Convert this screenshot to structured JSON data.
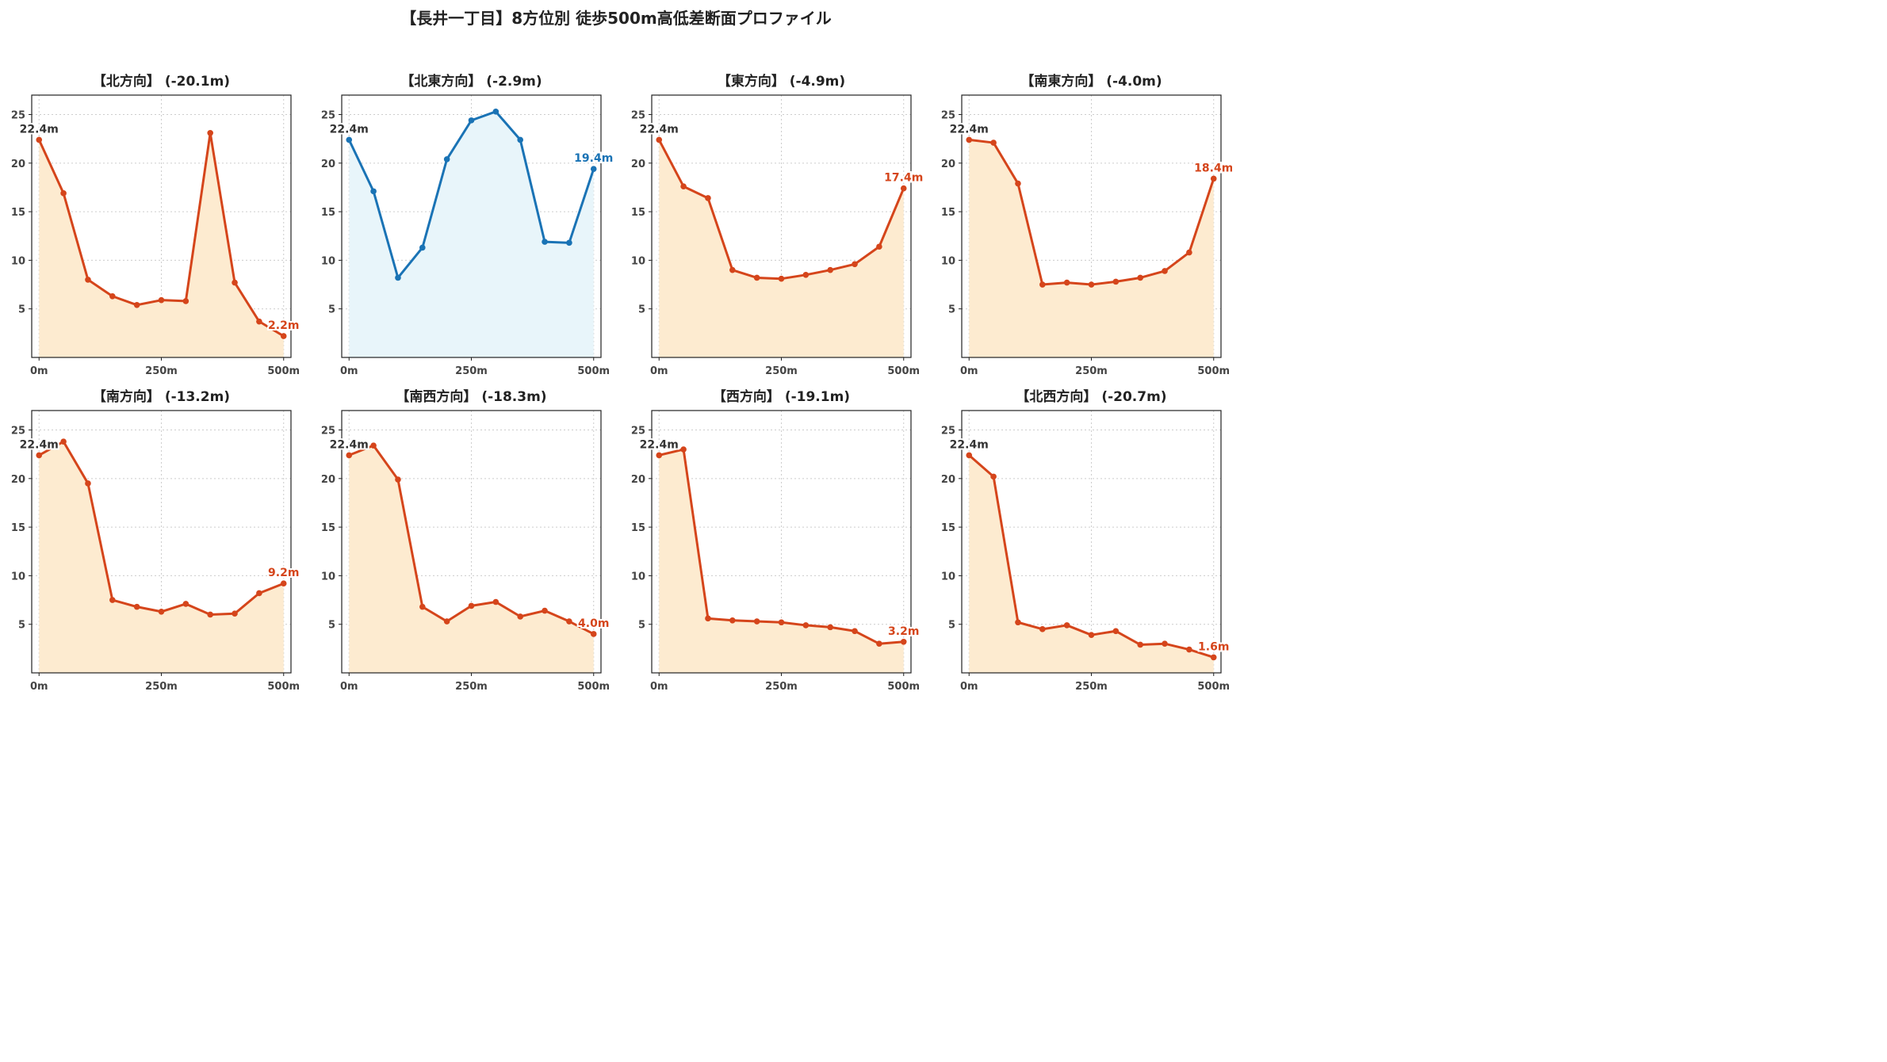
{
  "title": "【長井一丁目】8方位別 徒歩500m高低差断面プロファイル",
  "colors": {
    "down_line": "#d5451b",
    "down_fill": "#fdebd0",
    "up_line": "#1a73b5",
    "up_fill": "#e8f5fa",
    "start_label": "#333333",
    "grid": "#cccccc"
  },
  "chart_data": [
    {
      "type": "area",
      "title": "【北方向】 (-20.1m)",
      "x": [
        0,
        50,
        100,
        150,
        200,
        250,
        300,
        350,
        400,
        450,
        500
      ],
      "values": [
        22.4,
        16.9,
        8.0,
        6.3,
        5.4,
        5.9,
        5.8,
        23.1,
        7.7,
        3.7,
        2.2
      ],
      "xticks": [
        "0m",
        "250m",
        "500m"
      ],
      "yticks": [
        5,
        10,
        15,
        20,
        25
      ],
      "xlim": [
        -15,
        515
      ],
      "ylim": [
        0,
        27
      ],
      "grid": true,
      "start_label": "22.4m",
      "end_label": "2.2m",
      "trend": "down"
    },
    {
      "type": "area",
      "title": "【北東方向】 (-2.9m)",
      "x": [
        0,
        50,
        100,
        150,
        200,
        250,
        300,
        350,
        400,
        450,
        500
      ],
      "values": [
        22.4,
        17.1,
        8.2,
        11.3,
        20.4,
        24.4,
        25.3,
        22.4,
        11.9,
        11.8,
        19.4
      ],
      "xticks": [
        "0m",
        "250m",
        "500m"
      ],
      "yticks": [
        5,
        10,
        15,
        20,
        25
      ],
      "xlim": [
        -15,
        515
      ],
      "ylim": [
        0,
        27
      ],
      "grid": true,
      "start_label": "22.4m",
      "end_label": "19.4m",
      "trend": "up"
    },
    {
      "type": "area",
      "title": "【東方向】 (-4.9m)",
      "x": [
        0,
        50,
        100,
        150,
        200,
        250,
        300,
        350,
        400,
        450,
        500
      ],
      "values": [
        22.4,
        17.6,
        16.4,
        9.0,
        8.2,
        8.1,
        8.5,
        9.0,
        9.6,
        11.4,
        17.4
      ],
      "xticks": [
        "0m",
        "250m",
        "500m"
      ],
      "yticks": [
        5,
        10,
        15,
        20,
        25
      ],
      "xlim": [
        -15,
        515
      ],
      "ylim": [
        0,
        27
      ],
      "grid": true,
      "start_label": "22.4m",
      "end_label": "17.4m",
      "trend": "down"
    },
    {
      "type": "area",
      "title": "【南東方向】 (-4.0m)",
      "x": [
        0,
        50,
        100,
        150,
        200,
        250,
        300,
        350,
        400,
        450,
        500
      ],
      "values": [
        22.4,
        22.1,
        17.9,
        7.5,
        7.7,
        7.5,
        7.8,
        8.2,
        8.9,
        10.8,
        18.4
      ],
      "xticks": [
        "0m",
        "250m",
        "500m"
      ],
      "yticks": [
        5,
        10,
        15,
        20,
        25
      ],
      "xlim": [
        -15,
        515
      ],
      "ylim": [
        0,
        27
      ],
      "grid": true,
      "start_label": "22.4m",
      "end_label": "18.4m",
      "trend": "down"
    },
    {
      "type": "area",
      "title": "【南方向】 (-13.2m)",
      "x": [
        0,
        50,
        100,
        150,
        200,
        250,
        300,
        350,
        400,
        450,
        500
      ],
      "values": [
        22.4,
        23.8,
        19.5,
        7.5,
        6.8,
        6.3,
        7.1,
        6.0,
        6.1,
        8.2,
        9.2
      ],
      "xticks": [
        "0m",
        "250m",
        "500m"
      ],
      "yticks": [
        5,
        10,
        15,
        20,
        25
      ],
      "xlim": [
        -15,
        515
      ],
      "ylim": [
        0,
        27
      ],
      "grid": true,
      "start_label": "22.4m",
      "end_label": "9.2m",
      "trend": "down"
    },
    {
      "type": "area",
      "title": "【南西方向】 (-18.3m)",
      "x": [
        0,
        50,
        100,
        150,
        200,
        250,
        300,
        350,
        400,
        450,
        500
      ],
      "values": [
        22.4,
        23.4,
        19.9,
        6.8,
        5.3,
        6.9,
        7.3,
        5.8,
        6.4,
        5.3,
        4.0
      ],
      "xticks": [
        "0m",
        "250m",
        "500m"
      ],
      "yticks": [
        5,
        10,
        15,
        20,
        25
      ],
      "xlim": [
        -15,
        515
      ],
      "ylim": [
        0,
        27
      ],
      "grid": true,
      "start_label": "22.4m",
      "end_label": "4.0m",
      "trend": "down"
    },
    {
      "type": "area",
      "title": "【西方向】 (-19.1m)",
      "x": [
        0,
        50,
        100,
        150,
        200,
        250,
        300,
        350,
        400,
        450,
        500
      ],
      "values": [
        22.4,
        23.0,
        5.6,
        5.4,
        5.3,
        5.2,
        4.9,
        4.7,
        4.3,
        3.0,
        3.2
      ],
      "xticks": [
        "0m",
        "250m",
        "500m"
      ],
      "yticks": [
        5,
        10,
        15,
        20,
        25
      ],
      "xlim": [
        -15,
        515
      ],
      "ylim": [
        0,
        27
      ],
      "grid": true,
      "start_label": "22.4m",
      "end_label": "3.2m",
      "trend": "down"
    },
    {
      "type": "area",
      "title": "【北西方向】 (-20.7m)",
      "x": [
        0,
        50,
        100,
        150,
        200,
        250,
        300,
        350,
        400,
        450,
        500
      ],
      "values": [
        22.4,
        20.2,
        5.2,
        4.5,
        4.9,
        3.9,
        4.3,
        2.9,
        3.0,
        2.4,
        1.6
      ],
      "xticks": [
        "0m",
        "250m",
        "500m"
      ],
      "yticks": [
        5,
        10,
        15,
        20,
        25
      ],
      "xlim": [
        -15,
        515
      ],
      "ylim": [
        0,
        27
      ],
      "grid": true,
      "start_label": "22.4m",
      "end_label": "1.6m",
      "trend": "down"
    }
  ]
}
